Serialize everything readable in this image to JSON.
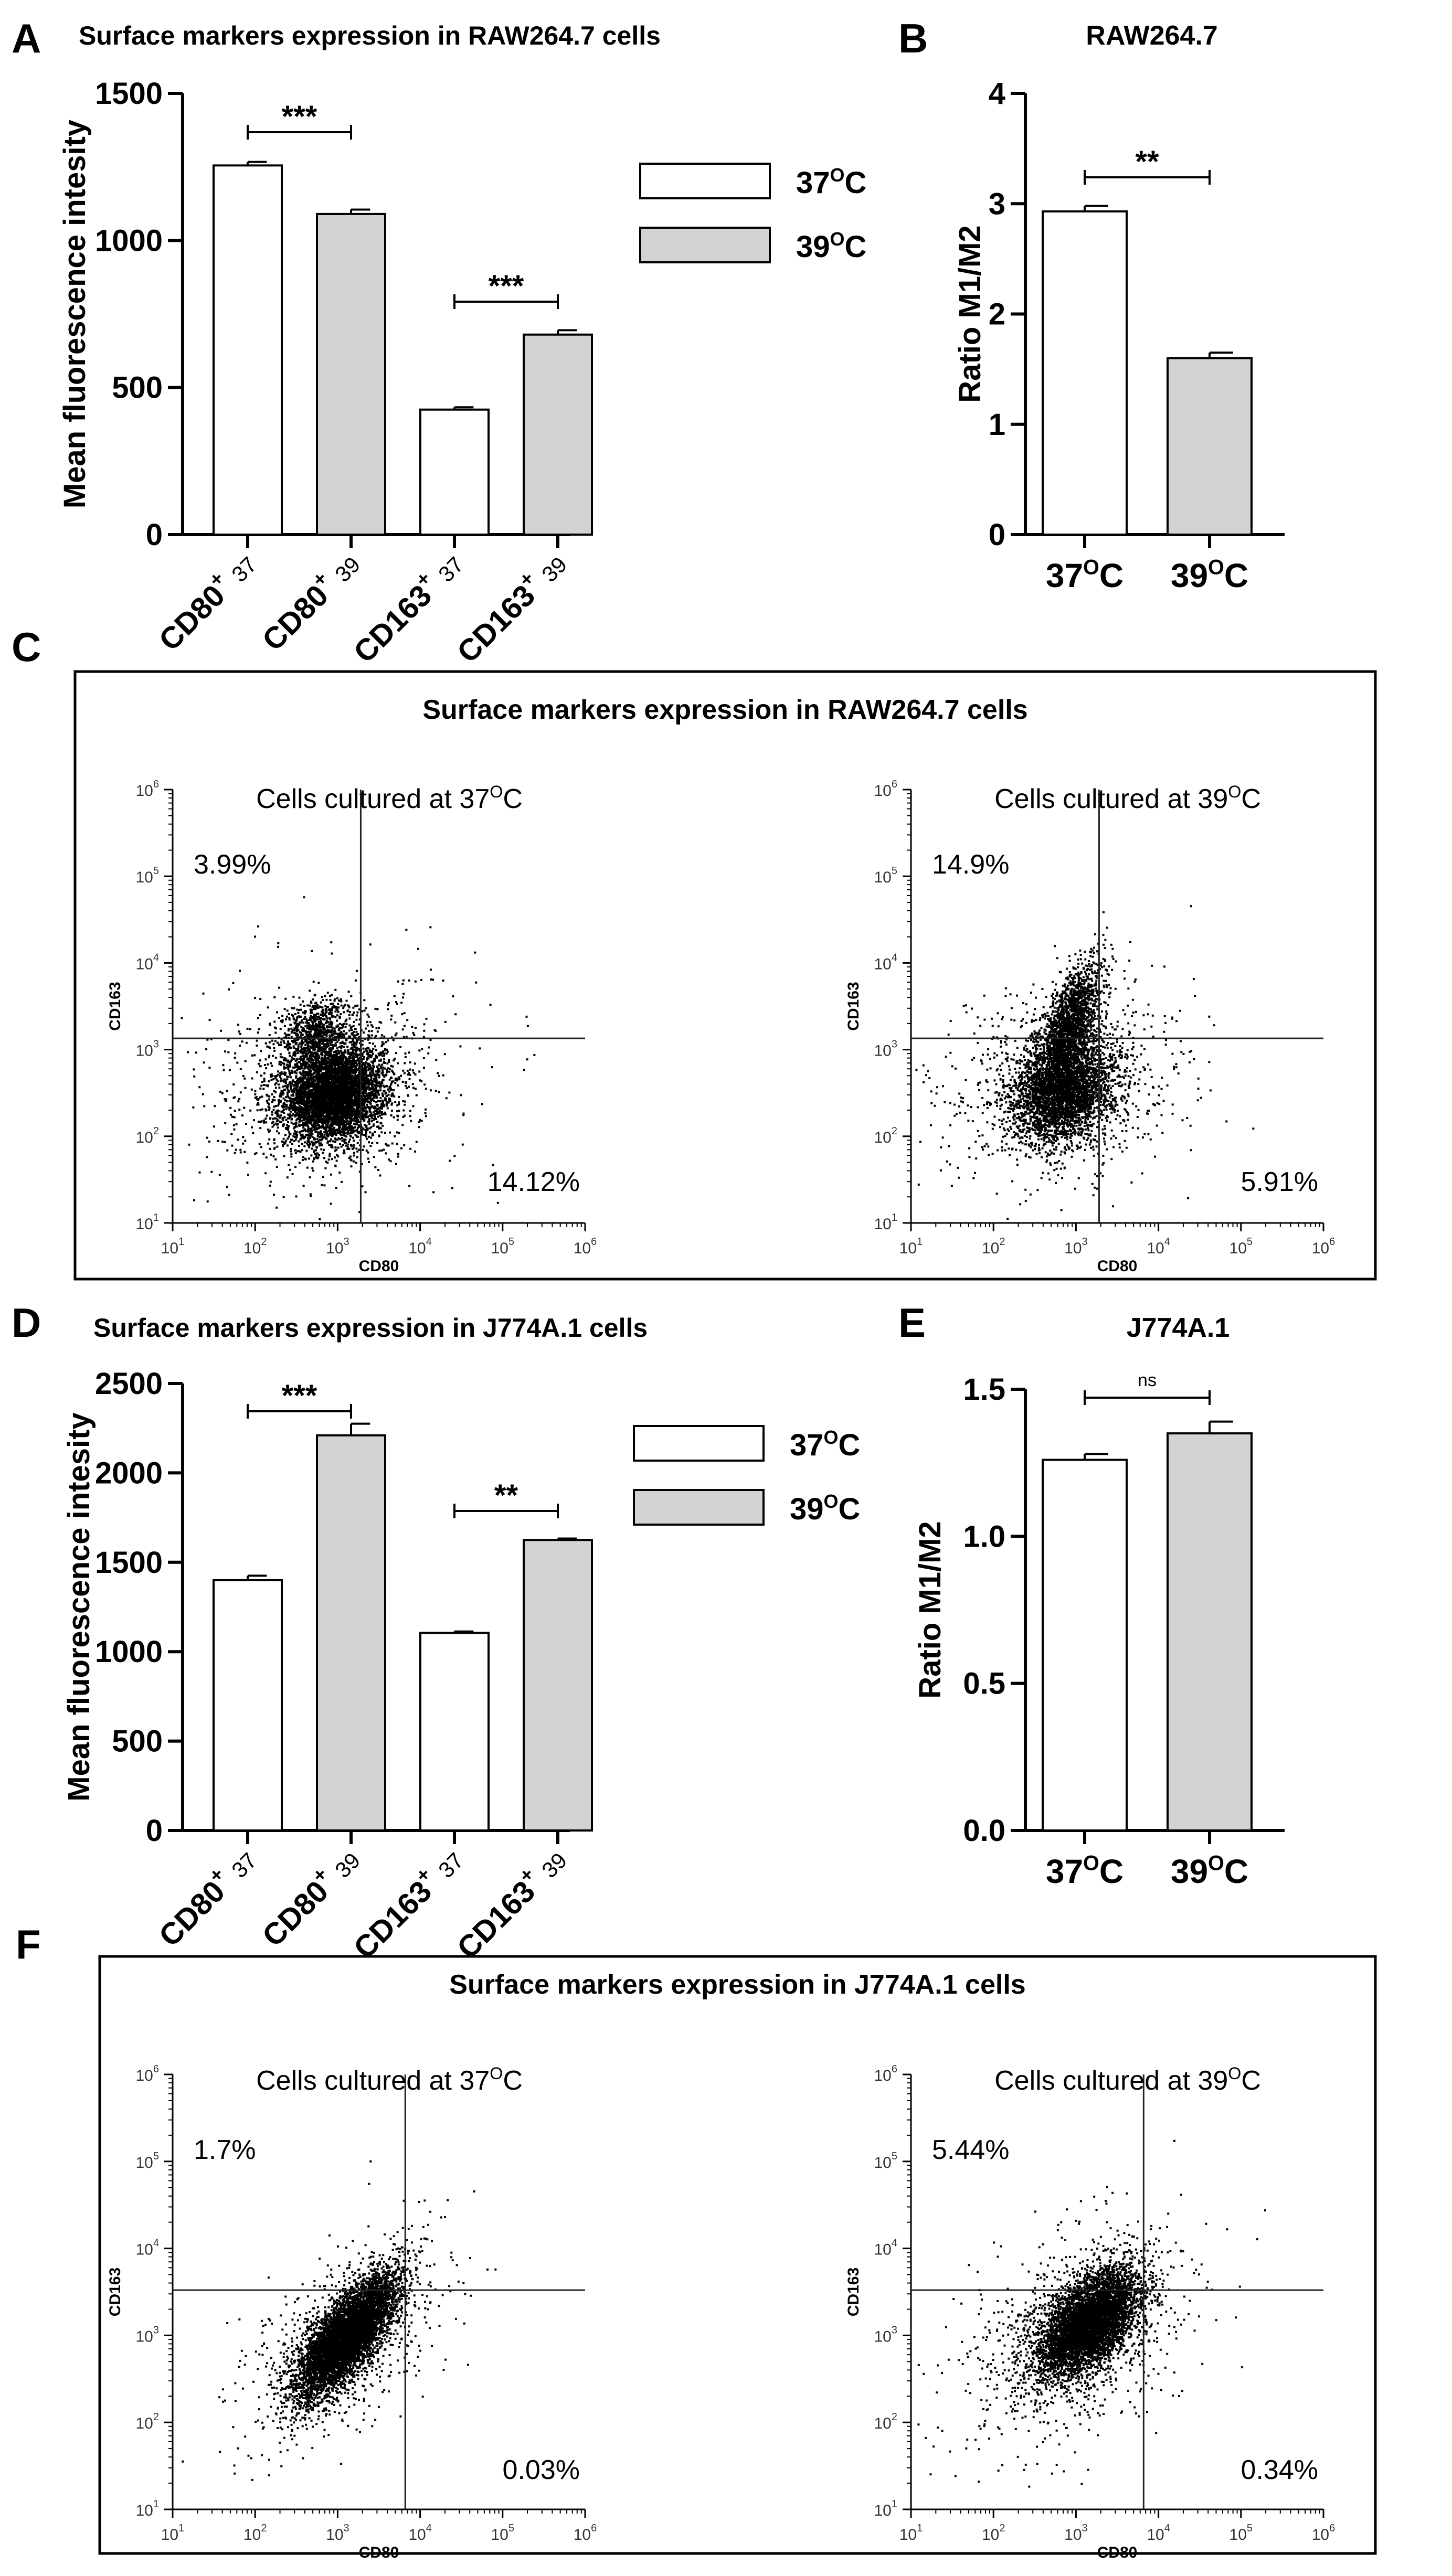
{
  "chart_data": [
    {
      "panel": "A",
      "type": "bar",
      "title": "Surface markers expression in RAW264.7 cells",
      "ylabel": "Mean fluorescence intesity",
      "ylim": [
        0,
        1500
      ],
      "yticks": [
        "0",
        "500",
        "1000",
        "1500"
      ],
      "categories": [
        {
          "marker": "CD80",
          "sup": "+",
          "temp": "37"
        },
        {
          "marker": "CD80",
          "sup": "+",
          "temp": "39"
        },
        {
          "marker": "CD163",
          "sup": "+",
          "temp": "37"
        },
        {
          "marker": "CD163",
          "sup": "+",
          "temp": "39"
        }
      ],
      "values": [
        1255,
        1090,
        425,
        680
      ],
      "errors": [
        12,
        15,
        8,
        15
      ],
      "fills": [
        "white",
        "gray",
        "white",
        "gray"
      ],
      "significance": [
        {
          "from": 0,
          "to": 1,
          "label": "***"
        },
        {
          "from": 2,
          "to": 3,
          "label": "***"
        }
      ],
      "legend": [
        {
          "base": "37",
          "sup": "O",
          "unit": "C",
          "fill": "white"
        },
        {
          "base": "39",
          "sup": "O",
          "unit": "C",
          "fill": "gray"
        }
      ]
    },
    {
      "panel": "B",
      "type": "bar",
      "title": "RAW264.7",
      "ylabel": "Ratio M1/M2",
      "ylim": [
        0,
        4
      ],
      "yticks": [
        "0",
        "1",
        "2",
        "3",
        "4"
      ],
      "categories": [
        {
          "base": "37",
          "sup": "O",
          "unit": "C"
        },
        {
          "base": "39",
          "sup": "O",
          "unit": "C"
        }
      ],
      "values": [
        2.93,
        1.6
      ],
      "errors": [
        0.05,
        0.05
      ],
      "fills": [
        "white",
        "gray"
      ],
      "significance": [
        {
          "from": 0,
          "to": 1,
          "label": "**"
        }
      ]
    },
    {
      "panel": "C",
      "type": "scatter",
      "title": "Surface markers expression in RAW264.7 cells",
      "plots": [
        {
          "subtitle": {
            "prefix": "Cells cultured at ",
            "base": "37",
            "sup": "O",
            "unit": "C"
          },
          "upper_left": "3.99%",
          "lower_right": "14.12%",
          "xlabel": "CD80",
          "ylabel": "CD163",
          "xlim_exp": [
            1,
            6
          ],
          "ylim_exp": [
            1,
            6
          ],
          "x_gate_log": 3.28,
          "y_gate_log": 3.13,
          "clusters": [
            {
              "x": 2.95,
              "y": 2.5,
              "sx": 0.3,
              "sy": 0.27,
              "n": 5000,
              "rho": 0.15
            },
            {
              "x": 2.72,
              "y": 3.2,
              "sx": 0.2,
              "sy": 0.2,
              "n": 800,
              "rho": 0.2
            },
            {
              "x": 2.9,
              "y": 2.6,
              "sx": 0.75,
              "sy": 0.6,
              "n": 900,
              "rho": 0.2
            }
          ]
        },
        {
          "subtitle": {
            "prefix": "Cells cultured at ",
            "base": "39",
            "sup": "O",
            "unit": "C"
          },
          "upper_left": "14.9%",
          "lower_right": "5.91%",
          "xlabel": "CD80",
          "ylabel": "CD163",
          "xlim_exp": [
            1,
            6
          ],
          "ylim_exp": [
            1,
            6
          ],
          "x_gate_log": 3.28,
          "y_gate_log": 3.13,
          "clusters": [
            {
              "x": 2.85,
              "y": 2.55,
              "sx": 0.3,
              "sy": 0.3,
              "n": 3400,
              "rho": 0.2
            },
            {
              "x": 2.93,
              "y": 3.35,
              "sx": 0.18,
              "sy": 0.32,
              "n": 1600,
              "rho": 0.6
            },
            {
              "x": 2.8,
              "y": 2.6,
              "sx": 0.75,
              "sy": 0.6,
              "n": 900,
              "rho": 0.2
            }
          ]
        }
      ]
    },
    {
      "panel": "D",
      "type": "bar",
      "title": "Surface markers expression in J774A.1 cells",
      "ylabel": "Mean fluorescence intesity",
      "ylim": [
        0,
        2500
      ],
      "yticks": [
        "0",
        "500",
        "1000",
        "1500",
        "2000",
        "2500"
      ],
      "categories": [
        {
          "marker": "CD80",
          "sup": "+",
          "temp": "37"
        },
        {
          "marker": "CD80",
          "sup": "+",
          "temp": "39"
        },
        {
          "marker": "CD163",
          "sup": "+",
          "temp": "37"
        },
        {
          "marker": "CD163",
          "sup": "+",
          "temp": "39"
        }
      ],
      "values": [
        1400,
        2210,
        1105,
        1625
      ],
      "errors": [
        25,
        65,
        8,
        8
      ],
      "fills": [
        "white",
        "gray",
        "white",
        "gray"
      ],
      "significance": [
        {
          "from": 0,
          "to": 1,
          "label": "***"
        },
        {
          "from": 2,
          "to": 3,
          "label": "**"
        }
      ],
      "legend": [
        {
          "base": "37",
          "sup": "O",
          "unit": "C",
          "fill": "white"
        },
        {
          "base": "39",
          "sup": "O",
          "unit": "C",
          "fill": "gray"
        }
      ]
    },
    {
      "panel": "E",
      "type": "bar",
      "title": "J774A.1",
      "ylabel": "Ratio M1/M2",
      "ylim": [
        0,
        1.5
      ],
      "yticks": [
        "0.0",
        "0.5",
        "1.0",
        "1.5"
      ],
      "categories": [
        {
          "base": "37",
          "sup": "O",
          "unit": "C"
        },
        {
          "base": "39",
          "sup": "O",
          "unit": "C"
        }
      ],
      "values": [
        1.26,
        1.35
      ],
      "errors": [
        0.02,
        0.04
      ],
      "fills": [
        "white",
        "gray"
      ],
      "significance": [
        {
          "from": 0,
          "to": 1,
          "label": "ns"
        }
      ]
    },
    {
      "panel": "F",
      "type": "scatter",
      "title": "Surface markers expression in J774A.1 cells",
      "plots": [
        {
          "subtitle": {
            "prefix": "Cells cultured at ",
            "base": "37",
            "sup": "O",
            "unit": "C"
          },
          "upper_left": "1.7%",
          "lower_right": "0.03%",
          "xlabel": "CD80",
          "ylabel": "CD163",
          "xlim_exp": [
            1,
            6
          ],
          "ylim_exp": [
            1,
            6
          ],
          "x_gate_log": 3.82,
          "y_gate_log": 3.52,
          "clusters": [
            {
              "x": 3.1,
              "y": 3.0,
              "sx": 0.3,
              "sy": 0.35,
              "n": 6000,
              "rho": 0.75
            },
            {
              "x": 3.05,
              "y": 2.9,
              "sx": 0.6,
              "sy": 0.6,
              "n": 700,
              "rho": 0.5
            }
          ]
        },
        {
          "subtitle": {
            "prefix": "Cells cultured at ",
            "base": "39",
            "sup": "O",
            "unit": "C"
          },
          "upper_left": "5.44%",
          "lower_right": "0.34%",
          "xlabel": "CD80",
          "ylabel": "CD163",
          "xlim_exp": [
            1,
            6
          ],
          "ylim_exp": [
            1,
            6
          ],
          "x_gate_log": 3.82,
          "y_gate_log": 3.52,
          "clusters": [
            {
              "x": 3.15,
              "y": 3.15,
              "sx": 0.3,
              "sy": 0.3,
              "n": 5500,
              "rho": 0.55
            },
            {
              "x": 3.0,
              "y": 3.0,
              "sx": 0.7,
              "sy": 0.65,
              "n": 900,
              "rho": 0.4
            }
          ]
        }
      ]
    }
  ],
  "panel_letters": [
    "A",
    "B",
    "C",
    "D",
    "E",
    "F"
  ],
  "colors": {
    "bar_gray": "#d3d3d3",
    "bar_white": "#ffffff",
    "ink": "#000000",
    "dot": "#000000"
  }
}
